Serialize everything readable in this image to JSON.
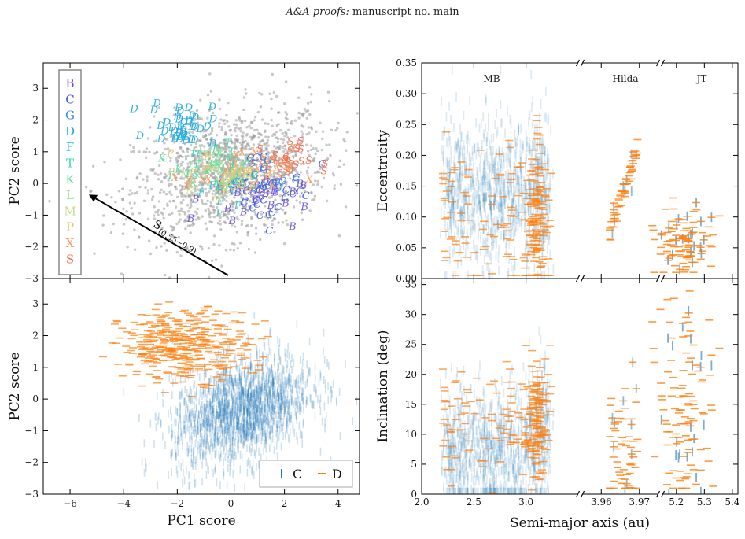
{
  "header": {
    "journal": "A&A proofs:",
    "rest": "manuscript no. main"
  },
  "colors": {
    "C": "#1f77b4",
    "D": "#ff7f0e",
    "grey": "#9a9a9a"
  },
  "chart_data": [
    {
      "id": "pc-scatter-classes",
      "type": "scatter",
      "xlabel": "",
      "ylabel": "PC2 score",
      "xlim": [
        -7,
        4.8
      ],
      "ylim": [
        -3,
        3.8
      ],
      "xticks": [
        -6,
        -4,
        -2,
        0,
        2,
        4
      ],
      "yticks": [
        -3,
        -2,
        -1,
        0,
        1,
        2,
        3
      ],
      "legend": {
        "position": "top-left",
        "entries": [
          {
            "label": "B",
            "color": "#6a4fd8"
          },
          {
            "label": "C",
            "color": "#3d57e0"
          },
          {
            "label": "G",
            "color": "#2f86e6"
          },
          {
            "label": "D",
            "color": "#1ea8e0"
          },
          {
            "label": "F",
            "color": "#2fc6d2"
          },
          {
            "label": "T",
            "color": "#38d6b4"
          },
          {
            "label": "K",
            "color": "#4fe0a0"
          },
          {
            "label": "L",
            "color": "#9ae09a"
          },
          {
            "label": "M",
            "color": "#c6dc8a"
          },
          {
            "label": "P",
            "color": "#eec070"
          },
          {
            "label": "X",
            "color": "#f79a5c"
          },
          {
            "label": "S",
            "color": "#f66a4a"
          }
        ]
      },
      "annotation": {
        "text": "S",
        "sub": "(0.55−0.9)",
        "arrow_from": [
          -0.1,
          -2.9
        ],
        "arrow_to": [
          -5.3,
          -0.35
        ]
      },
      "background_cloud": {
        "name": "",
        "center": [
          0.0,
          0.3
        ],
        "spread": [
          1.8,
          1.0
        ],
        "n": 1400,
        "color": "#9a9a9a"
      },
      "class_groups": [
        {
          "label": "D",
          "center": [
            -1.8,
            1.8
          ],
          "spread": [
            0.6,
            0.35
          ],
          "n": 40
        },
        {
          "label": "C",
          "center": [
            1.3,
            -0.2
          ],
          "spread": [
            1.0,
            0.6
          ],
          "n": 35
        },
        {
          "label": "B",
          "center": [
            0.8,
            -0.6
          ],
          "spread": [
            0.9,
            0.4
          ],
          "n": 25
        },
        {
          "label": "S",
          "center": [
            1.8,
            0.6
          ],
          "spread": [
            0.6,
            0.3
          ],
          "n": 30
        },
        {
          "label": "X",
          "center": [
            0.3,
            0.2
          ],
          "spread": [
            1.0,
            0.4
          ],
          "n": 30
        },
        {
          "label": "K",
          "center": [
            -0.5,
            0.2
          ],
          "spread": [
            0.8,
            0.3
          ],
          "n": 20
        },
        {
          "label": "L",
          "center": [
            -0.8,
            0.5
          ],
          "spread": [
            0.6,
            0.3
          ],
          "n": 18
        },
        {
          "label": "M",
          "center": [
            0.0,
            0.1
          ],
          "spread": [
            0.9,
            0.3
          ],
          "n": 18
        },
        {
          "label": "P",
          "center": [
            -0.3,
            0.3
          ],
          "spread": [
            0.8,
            0.3
          ],
          "n": 18
        },
        {
          "label": "T",
          "center": [
            -0.6,
            0.6
          ],
          "spread": [
            0.5,
            0.3
          ],
          "n": 12
        },
        {
          "label": "G",
          "center": [
            1.2,
            0.1
          ],
          "spread": [
            0.7,
            0.4
          ],
          "n": 12
        },
        {
          "label": "F",
          "center": [
            -0.2,
            -0.3
          ],
          "spread": [
            0.6,
            0.3
          ],
          "n": 10
        }
      ]
    },
    {
      "id": "pc-scatter-cd",
      "type": "scatter",
      "xlabel": "PC1 score",
      "ylabel": "PC2 score",
      "xlim": [
        -7,
        4.8
      ],
      "ylim": [
        -3,
        3.8
      ],
      "xticks": [
        -6,
        -4,
        -2,
        0,
        2,
        4
      ],
      "yticks": [
        -3,
        -2,
        -1,
        0,
        1,
        2,
        3
      ],
      "legend": {
        "position": "bottom-right"
      },
      "series": [
        {
          "name": "C",
          "marker": "vertical-dash",
          "color": "#1f77b4",
          "center": [
            0.4,
            -0.35
          ],
          "spread": [
            1.3,
            0.8
          ],
          "n": 1800
        },
        {
          "name": "D",
          "marker": "horizontal-dash",
          "color": "#ff7f0e",
          "center": [
            -1.7,
            1.7
          ],
          "spread": [
            1.2,
            0.55
          ],
          "n": 420
        }
      ]
    },
    {
      "id": "a-e",
      "type": "scatter",
      "xlabel": "",
      "ylabel": "Eccentricity",
      "ylim": [
        0.0,
        0.35
      ],
      "yticks": [
        "0.00",
        "0.05",
        "0.10",
        "0.15",
        "0.20",
        "0.25",
        "0.30",
        "0.35"
      ],
      "regions": [
        {
          "label": "MB",
          "xlim": [
            2.0,
            3.5
          ]
        },
        {
          "label": "Hilda",
          "xlim": [
            3.955,
            3.975
          ]
        },
        {
          "label": "JT",
          "xlim": [
            5.15,
            5.42
          ]
        }
      ]
    },
    {
      "id": "a-i",
      "type": "scatter",
      "xlabel": "Semi-major axis (au)",
      "ylabel": "Inclination (deg)",
      "ylim": [
        0,
        36
      ],
      "yticks": [
        "0",
        "5",
        "10",
        "15",
        "20",
        "25",
        "30",
        "35"
      ],
      "xticks": [
        {
          "label": "2.0",
          "x": 2.0,
          "segment": 0
        },
        {
          "label": "2.5",
          "x": 2.5,
          "segment": 0
        },
        {
          "label": "3.0",
          "x": 3.0,
          "segment": 0
        },
        {
          "label": "3.96",
          "x": 3.96,
          "segment": 1
        },
        {
          "label": "3.97",
          "x": 3.97,
          "segment": 1
        },
        {
          "label": "5.2",
          "x": 5.2,
          "segment": 2
        },
        {
          "label": "5.3",
          "x": 5.3,
          "segment": 2
        },
        {
          "label": "5.4",
          "x": 5.4,
          "segment": 2
        }
      ]
    }
  ]
}
